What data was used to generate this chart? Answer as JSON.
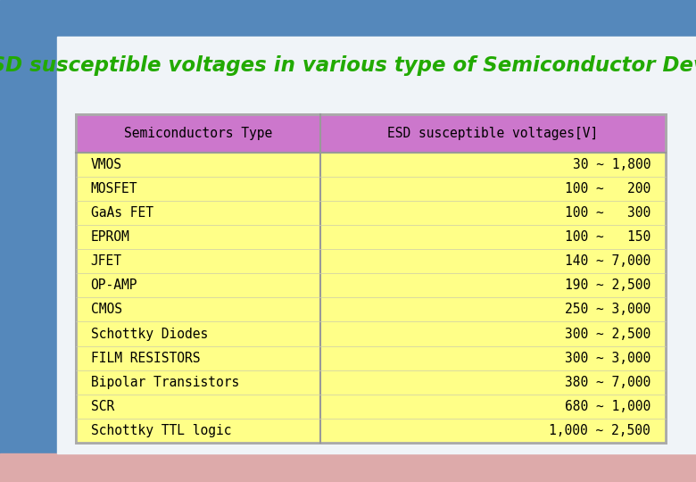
{
  "title": "ESD susceptible voltages in various type of Semiconductor Device",
  "title_color": "#22aa00",
  "title_fontsize": 16.5,
  "bg_main": "#e8eef5",
  "bg_top_stripe": "#5588bb",
  "bg_left_stripe": "#5588bb",
  "bg_bottom_stripe": "#ddaaaa",
  "header_bg": "#cc77cc",
  "body_bg": "#ffff88",
  "border_color": "#aaaaaa",
  "col1_header": "Semiconductors Type",
  "col2_header": "ESD susceptible voltages[V]",
  "rows": [
    [
      "VMOS",
      "30 ~ 1,800"
    ],
    [
      "MOSFET",
      "100 ~   200"
    ],
    [
      "GaAs FET",
      "100 ~   300"
    ],
    [
      "EPROM",
      "100 ~   150"
    ],
    [
      "JFET",
      "140 ~ 7,000"
    ],
    [
      "OP-AMP",
      "190 ~ 2,500"
    ],
    [
      "CMOS",
      "250 ~ 3,000"
    ],
    [
      "Schottky Diodes",
      "300 ~ 2,500"
    ],
    [
      "FILM RESISTORS",
      "300 ~ 3,000"
    ],
    [
      "Bipolar Transistors",
      "380 ~ 7,000"
    ],
    [
      "SCR",
      "680 ~ 1,000"
    ],
    [
      "Schottky TTL logic",
      "1,000 ~ 2,500"
    ]
  ]
}
